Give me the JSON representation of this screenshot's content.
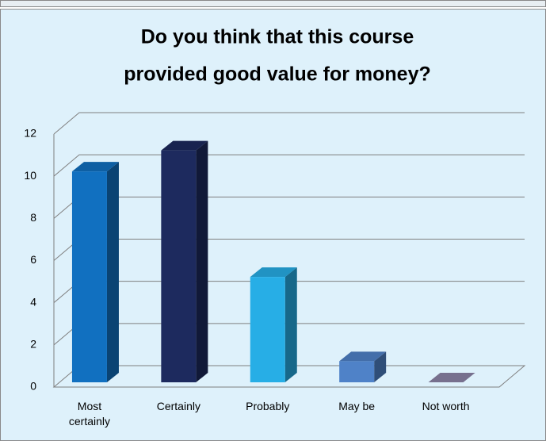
{
  "chart_data": {
    "type": "bar",
    "title": [
      "Do you think that this course",
      "provided good value for money?"
    ],
    "categories": [
      "Most certainly",
      "Certainly",
      "Probably",
      "May be",
      "Not worth"
    ],
    "values": [
      10,
      11,
      5,
      1,
      0
    ],
    "colors": [
      "#1170c0",
      "#1d2a5e",
      "#27aee6",
      "#4f82c8",
      "#8c84a8"
    ],
    "ylim": [
      0,
      12
    ],
    "yticks": [
      0,
      2,
      4,
      6,
      8,
      10,
      12
    ],
    "grid": true
  }
}
